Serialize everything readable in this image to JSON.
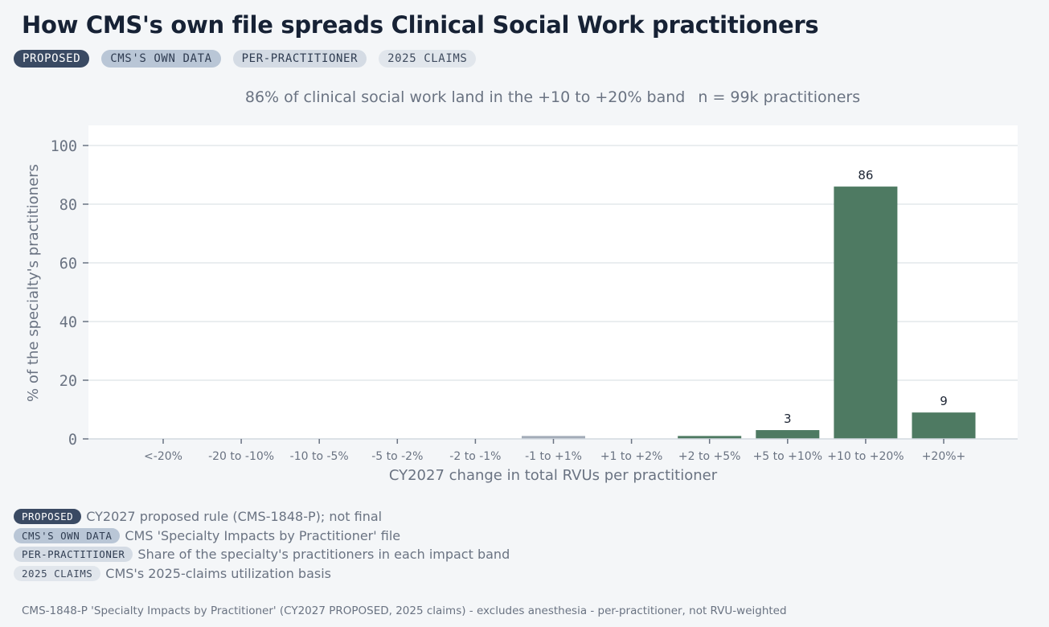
{
  "header": {
    "title": "How CMS's own file spreads Clinical Social Work practitioners",
    "tags": [
      "PROPOSED",
      "CMS'S OWN DATA",
      "PER-PRACTITIONER",
      "2025 CLAIMS"
    ]
  },
  "subtitle": {
    "main": "86% of clinical social work land in the +10 to +20% band",
    "n": "n = 99k practitioners"
  },
  "legend": [
    {
      "tag": "PROPOSED",
      "text": "CY2027 proposed rule (CMS-1848-P); not final"
    },
    {
      "tag": "CMS'S OWN DATA",
      "text": "CMS 'Specialty Impacts by Practitioner' file"
    },
    {
      "tag": "PER-PRACTITIONER",
      "text": "Share of the specialty's practitioners in each impact band"
    },
    {
      "tag": "2025 CLAIMS",
      "text": "CMS's 2025-claims utilization basis"
    }
  ],
  "footer": "CMS-1848-P 'Specialty Impacts by Practitioner' (CY2027 PROPOSED, 2025 claims) - excludes anesthesia - per-practitioner, not RVU-weighted",
  "chart_data": {
    "type": "bar",
    "xlabel": "CY2027 change in total RVUs per practitioner",
    "ylabel": "% of the specialty's practitioners",
    "ylim": [
      0,
      100
    ],
    "yticks": [
      0,
      20,
      40,
      60,
      80,
      100
    ],
    "grid": true,
    "categories": [
      "<-20%",
      "-20 to -10%",
      "-10 to -5%",
      "-5 to -2%",
      "-2 to -1%",
      "-1 to +1%",
      "+1 to +2%",
      "+2 to +5%",
      "+5 to +10%",
      "+10 to +20%",
      "+20%+"
    ],
    "values": [
      0,
      0,
      0,
      0,
      0,
      1,
      0,
      1,
      3,
      86,
      9
    ],
    "data_labels": [
      "",
      "",
      "",
      "",
      "",
      "",
      "",
      "",
      "3",
      "86",
      "9"
    ],
    "colors": {
      "increase": "#4e7a62",
      "neutral": "#a3acb8",
      "plot_bg": "#ffffff",
      "grid": "#e4e8ec",
      "axis_text": "#6a7382"
    }
  }
}
